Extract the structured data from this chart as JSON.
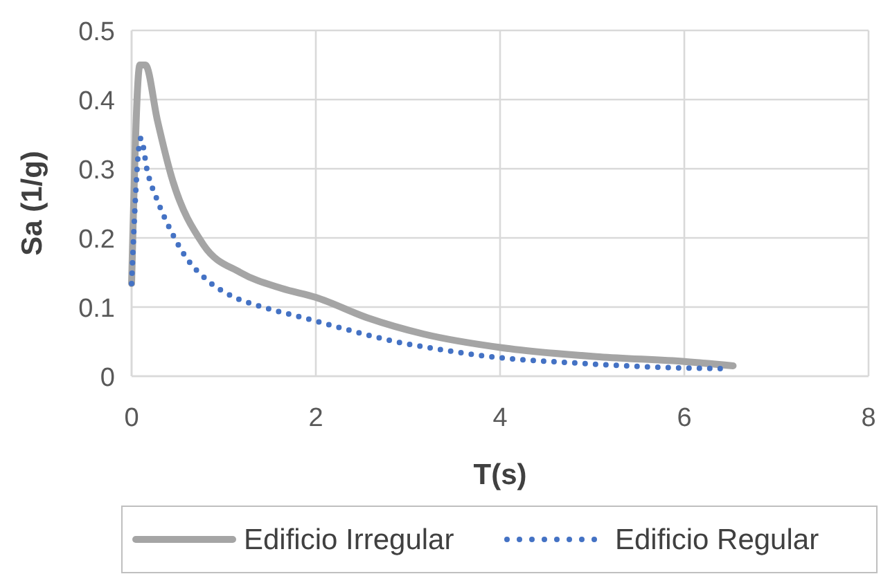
{
  "chart_data": {
    "type": "line",
    "xlabel": "T(s)",
    "ylabel": "Sa (1/g)",
    "xlim": [
      0,
      8
    ],
    "xticks": [
      0,
      2,
      4,
      6,
      8
    ],
    "ylim": [
      0,
      0.5
    ],
    "yticks": [
      0,
      0.1,
      0.2,
      0.3,
      0.4,
      0.5
    ],
    "grid": true,
    "legend": "bottom",
    "series": [
      {
        "name": "Edificio Irregular",
        "color": "#a5a5a5",
        "line_style": "solid",
        "x": [
          0,
          0.09,
          0.15,
          0.28,
          0.43,
          0.78,
          1.18,
          1.63,
          2.0,
          2.57,
          3.17,
          4.03,
          5.08,
          6.02,
          6.53
        ],
        "values": [
          0.134,
          0.45,
          0.45,
          0.37,
          0.29,
          0.19,
          0.15,
          0.127,
          0.114,
          0.084,
          0.061,
          0.041,
          0.028,
          0.021,
          0.015
        ]
      },
      {
        "name": "Edificio Regular",
        "color": "#4472c4",
        "line_style": "dotted",
        "x": [
          0,
          0.1,
          0.17,
          0.28,
          0.42,
          0.59,
          0.82,
          1.1,
          1.4,
          1.88,
          2.35,
          2.83,
          3.33,
          3.98,
          4.83,
          5.71,
          6.39
        ],
        "values": [
          0.134,
          0.344,
          0.297,
          0.254,
          0.212,
          0.172,
          0.139,
          0.115,
          0.101,
          0.084,
          0.067,
          0.051,
          0.039,
          0.027,
          0.019,
          0.013,
          0.011
        ]
      }
    ]
  }
}
